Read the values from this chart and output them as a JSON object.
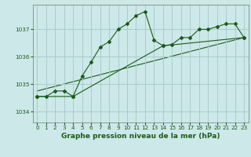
{
  "xlabel": "Graphe pression niveau de la mer (hPa)",
  "bg_color": "#cce8e8",
  "grid_color": "#aacccc",
  "line_color": "#1a5c1a",
  "x_ticks": [
    0,
    1,
    2,
    3,
    4,
    5,
    6,
    7,
    8,
    9,
    10,
    11,
    12,
    13,
    14,
    15,
    16,
    17,
    18,
    19,
    20,
    21,
    22,
    23
  ],
  "y_ticks": [
    1034,
    1035,
    1036,
    1037
  ],
  "ylim": [
    1033.6,
    1037.9
  ],
  "xlim": [
    -0.5,
    23.5
  ],
  "main_x": [
    0,
    1,
    2,
    3,
    4,
    5,
    6,
    7,
    8,
    9,
    10,
    11,
    12,
    13,
    14,
    15,
    16,
    17,
    18,
    19,
    20,
    21,
    22,
    23
  ],
  "main_y": [
    1034.55,
    1034.55,
    1034.75,
    1034.75,
    1034.55,
    1035.3,
    1035.8,
    1036.35,
    1036.55,
    1037.0,
    1037.2,
    1037.5,
    1037.65,
    1036.6,
    1036.4,
    1036.45,
    1036.7,
    1036.7,
    1037.0,
    1037.0,
    1037.1,
    1037.2,
    1037.2,
    1036.7
  ],
  "line2_x": [
    0,
    4,
    14,
    23
  ],
  "line2_y": [
    1034.55,
    1034.55,
    1036.4,
    1036.7
  ],
  "line3_x": [
    0,
    23
  ],
  "line3_y": [
    1034.75,
    1036.7
  ]
}
